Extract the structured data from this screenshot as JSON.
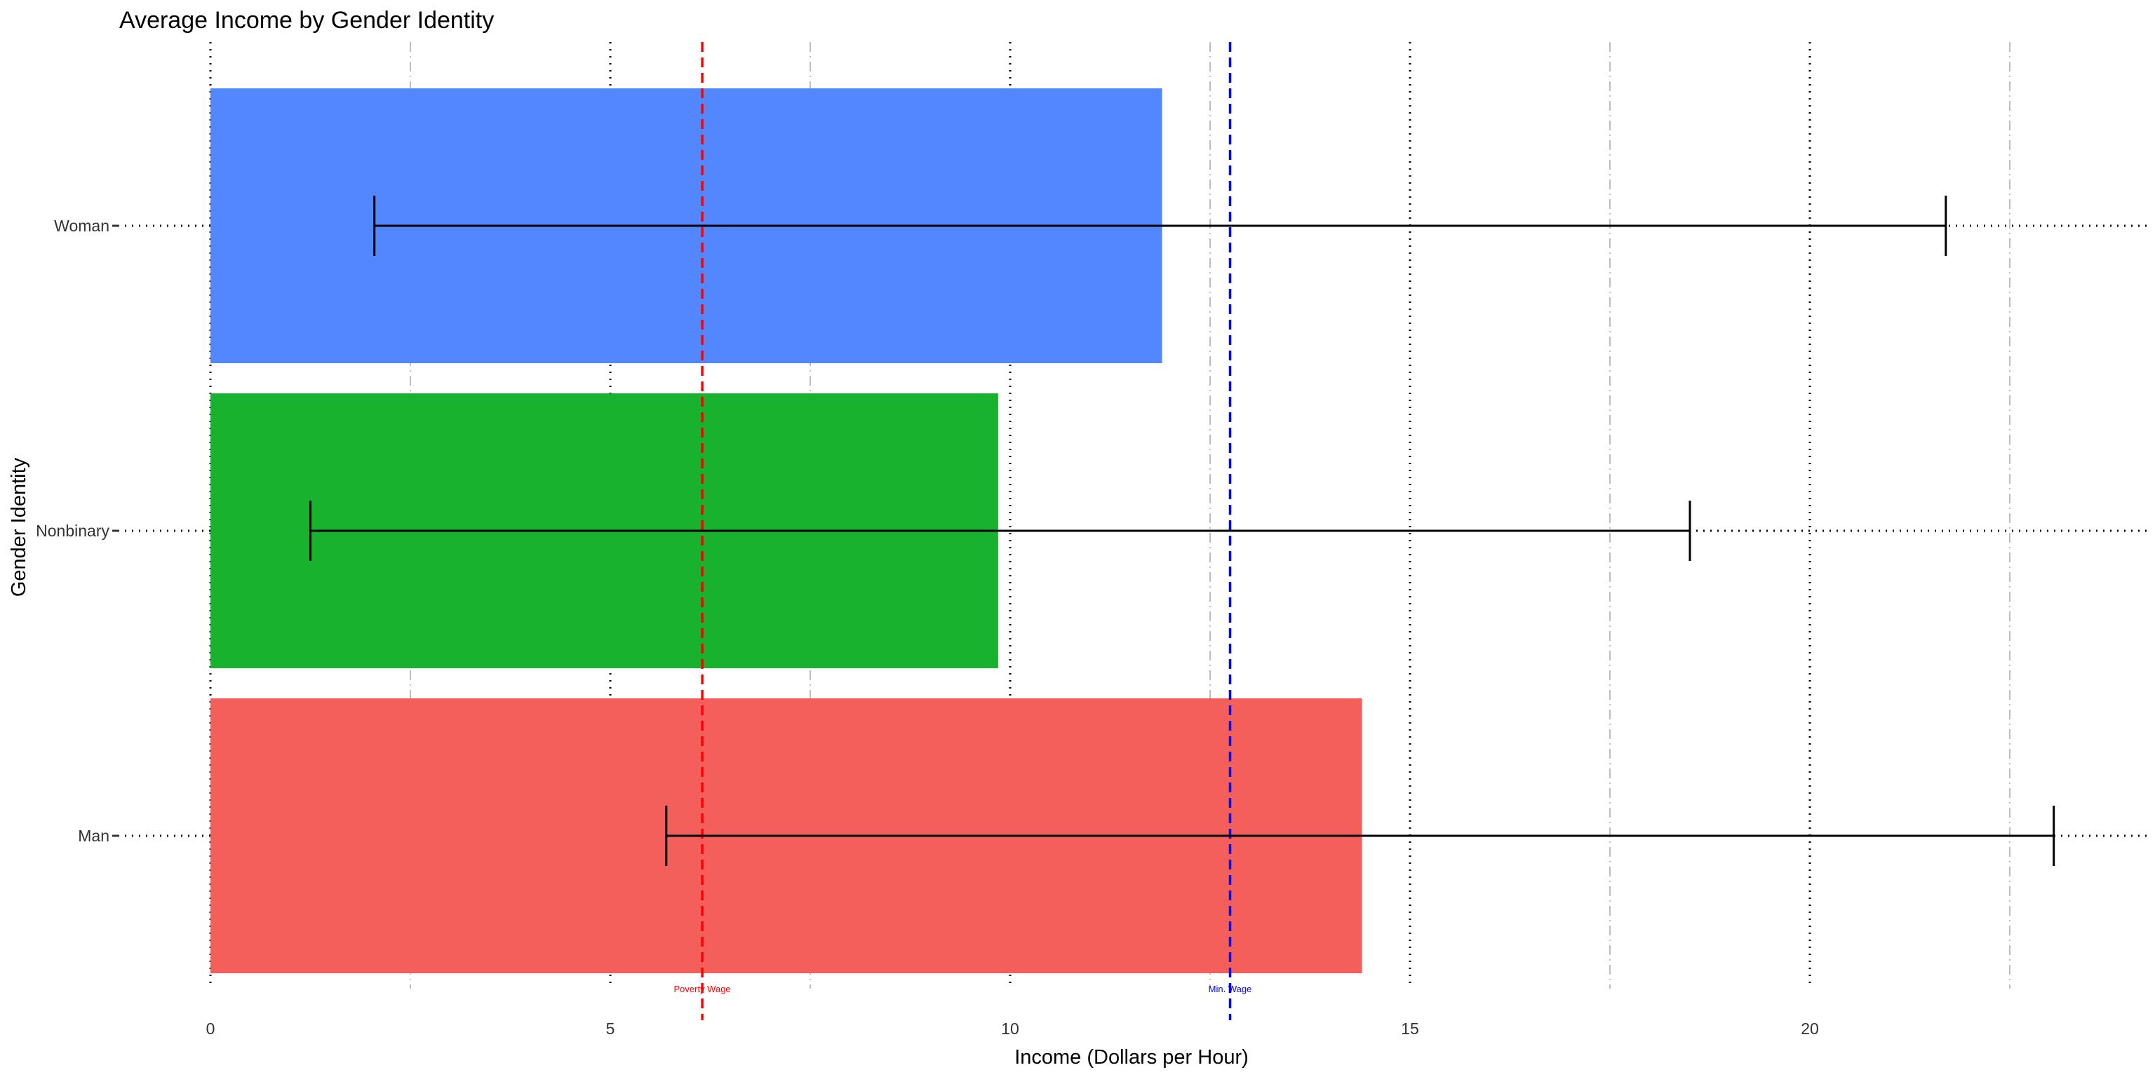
{
  "chart_data": {
    "type": "bar",
    "orientation": "horizontal",
    "title": "Average Income by Gender Identity",
    "xlabel": "Income (Dollars per Hour)",
    "ylabel": "Gender Identity",
    "xlim": [
      0,
      24.2
    ],
    "xticks": [
      0,
      5,
      10,
      15,
      20
    ],
    "minor_xticks": [
      2.5,
      7.5,
      12.5,
      17.5,
      22.5
    ],
    "categories": [
      "Woman",
      "Nonbinary",
      "Man"
    ],
    "values": [
      11.9,
      9.85,
      14.4
    ],
    "error_low": [
      2.05,
      1.25,
      5.7
    ],
    "error_high": [
      21.7,
      18.5,
      23.05
    ],
    "colors": [
      "#5387FF",
      "#19B22F",
      "#F45F5C"
    ],
    "reference_lines": [
      {
        "label": "Poverty Wage",
        "value": 6.15,
        "color": "#FF0000"
      },
      {
        "label": "Min. Wage",
        "value": 12.75,
        "color": "#0000FF"
      }
    ],
    "grid": true,
    "legend": "none"
  }
}
